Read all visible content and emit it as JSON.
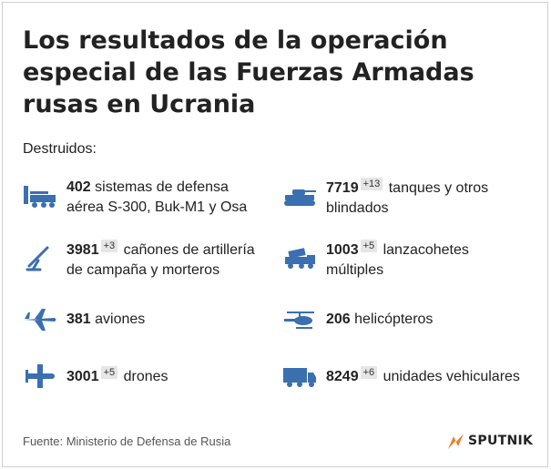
{
  "title": "Los resultados de la operación especial de las Fuerzas Armadas rusas en Ucrania",
  "subtitle": "Destruidos:",
  "icon_color": "#3a6fb0",
  "items": [
    {
      "icon": "air-defense-launcher-icon",
      "value": "402",
      "delta": "",
      "line1": "sistemas de defensa",
      "line2": "aérea S-300, Buk-M1 y Osa"
    },
    {
      "icon": "tank-icon",
      "value": "7719",
      "delta": "+13",
      "line1": "tanques y otros",
      "line2": "blindados"
    },
    {
      "icon": "artillery-icon",
      "value": "3981",
      "delta": "+3",
      "line1": "cañones de artillería",
      "line2": "de campaña y morteros"
    },
    {
      "icon": "rocket-launcher-icon",
      "value": "1003",
      "delta": "+5",
      "line1": "lanzacohetes",
      "line2": "múltiples"
    },
    {
      "icon": "airplane-icon",
      "value": "381",
      "delta": "",
      "line1": "aviones",
      "line2": ""
    },
    {
      "icon": "helicopter-icon",
      "value": "206",
      "delta": "",
      "line1": "helicópteros",
      "line2": ""
    },
    {
      "icon": "drone-icon",
      "value": "3001",
      "delta": "+5",
      "line1": "drones",
      "line2": ""
    },
    {
      "icon": "truck-icon",
      "value": "8249",
      "delta": "+6",
      "line1": "unidades vehiculares",
      "line2": ""
    }
  ],
  "footer": "Fuente: Ministerio de Defensa de Rusia",
  "brand": {
    "name": "SPUTNIK",
    "icon": "sputnik-logo-icon",
    "color": "#f47b20"
  }
}
